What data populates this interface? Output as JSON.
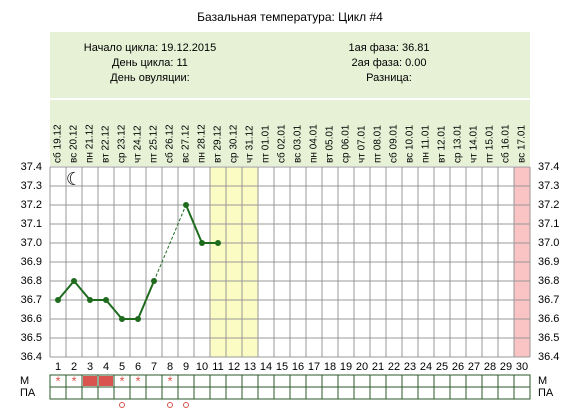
{
  "chart_data": {
    "type": "line",
    "title": "Базальная температура: Цикл #4",
    "info_left": [
      "Начало цикла: 19.12.2015",
      "День цикла: 11",
      "День овуляции:"
    ],
    "info_right": [
      "1ая фаза: 36.81",
      "2ая фаза: 0.00",
      "Разница:"
    ],
    "x": [
      1,
      2,
      3,
      4,
      5,
      6,
      7,
      8,
      9,
      10,
      11,
      12,
      13,
      14,
      15,
      16,
      17,
      18,
      19,
      20,
      21,
      22,
      23,
      24,
      25,
      26,
      27,
      28,
      29,
      30
    ],
    "date_labels": [
      "сб 19.12",
      "вс 20.12",
      "пн 21.12",
      "вт 22.12",
      "ср 23.12",
      "чт 24.12",
      "пт 25.12",
      "сб 26.12",
      "вс 27.12",
      "пн 28.12",
      "вт 29.12",
      "ср 30.12",
      "чт 31.12",
      "пт 01.01",
      "сб 02.01",
      "вс 03.01",
      "пн 04.01",
      "вт 05.01",
      "ср 06.01",
      "чт 07.01",
      "пт 08.01",
      "сб 09.01",
      "вс 10.01",
      "пн 11.01",
      "вт 12.01",
      "ср 13.01",
      "чт 14.01",
      "пт 15.01",
      "сб 16.01",
      "вс 17.01"
    ],
    "series": [
      {
        "color": "#1e6b1e",
        "values": [
          36.7,
          36.8,
          36.7,
          36.7,
          36.6,
          36.6,
          36.8,
          null,
          37.2,
          37.0,
          37.0,
          null,
          null,
          null,
          null,
          null,
          null,
          null,
          null,
          null,
          null,
          null,
          null,
          null,
          null,
          null,
          null,
          null,
          null,
          null
        ]
      }
    ],
    "ylim": [
      36.4,
      37.4
    ],
    "yticks": [
      36.4,
      36.5,
      36.6,
      36.7,
      36.8,
      36.9,
      {
        "value": 37,
        "label": "37.0"
      },
      37.1,
      37.2,
      37.3,
      37.4
    ],
    "grid": true,
    "highlight_days": [
      11,
      12,
      13
    ],
    "end_day": 30,
    "m_row": {
      "label": "М",
      "stars": [
        1,
        2,
        5,
        6,
        8
      ],
      "filled": [
        3,
        4
      ]
    },
    "pa_row": {
      "label": "ПА",
      "circles": [
        5,
        8,
        9
      ]
    }
  }
}
